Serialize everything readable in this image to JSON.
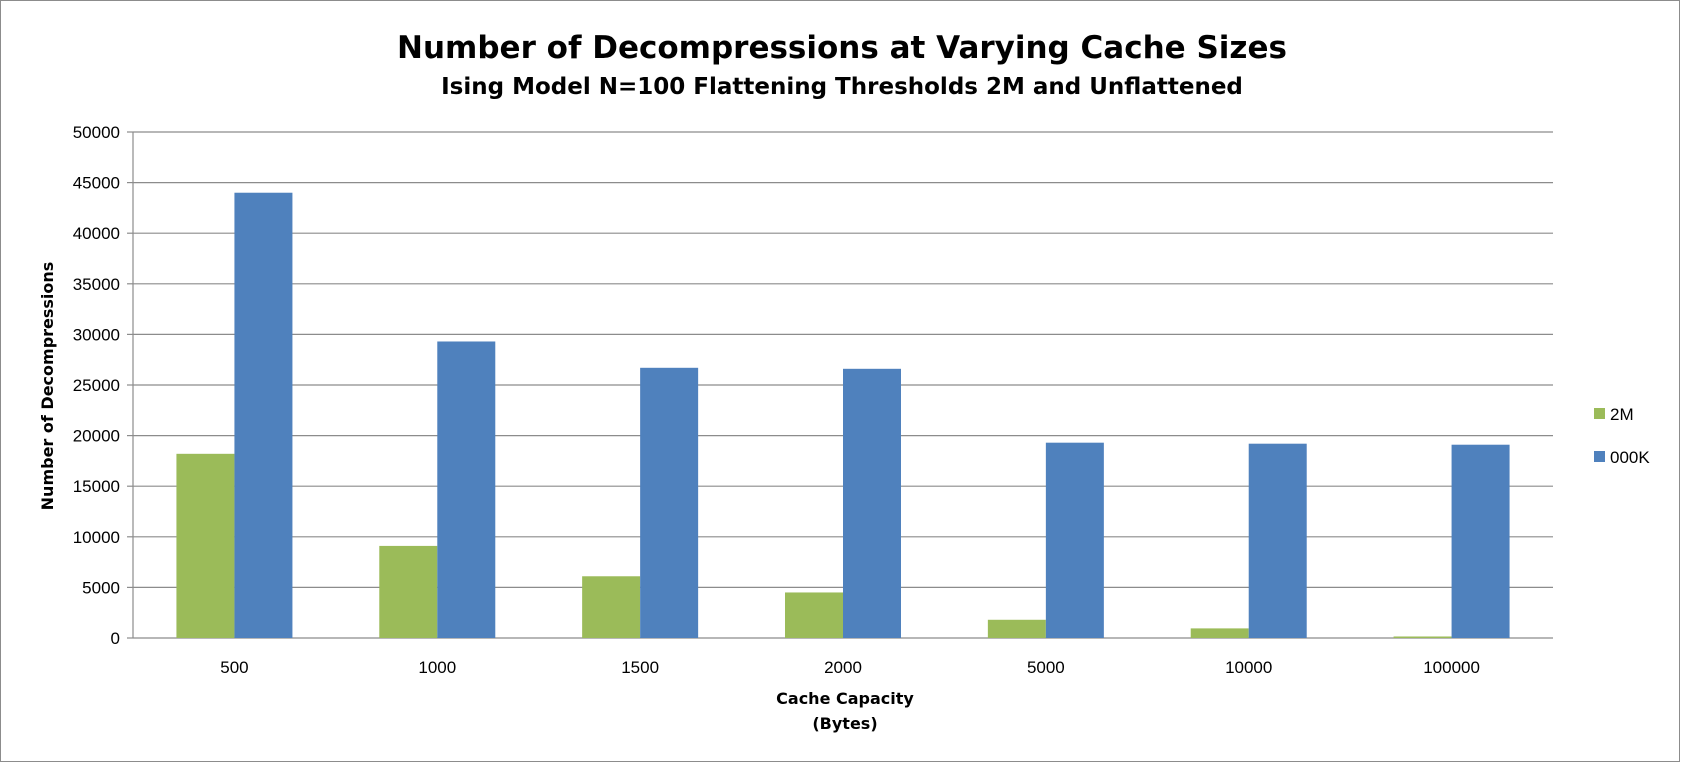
{
  "chart_data": {
    "type": "bar",
    "title": "Number of Decompressions at Varying Cache Sizes",
    "subtitle": "Ising Model N=100 Flattening Thresholds 2M and Unflattened",
    "xlabel_lines": [
      "Cache Capacity",
      "(Bytes)"
    ],
    "ylabel": "Number of Decompressions",
    "categories": [
      "500",
      "1000",
      "1500",
      "2000",
      "5000",
      "10000",
      "100000"
    ],
    "series": [
      {
        "name": "2M",
        "color": "#9bbb59",
        "values": [
          18200,
          9100,
          6100,
          4500,
          1800,
          950,
          150
        ]
      },
      {
        "name": "000K",
        "color": "#4f81bd",
        "values": [
          44000,
          29300,
          26700,
          26600,
          19300,
          19200,
          19100
        ]
      }
    ],
    "ylim": [
      0,
      50000
    ],
    "yticks": [
      0,
      5000,
      10000,
      15000,
      20000,
      25000,
      30000,
      35000,
      40000,
      45000,
      50000
    ],
    "grid": true,
    "legend_position": "right"
  }
}
